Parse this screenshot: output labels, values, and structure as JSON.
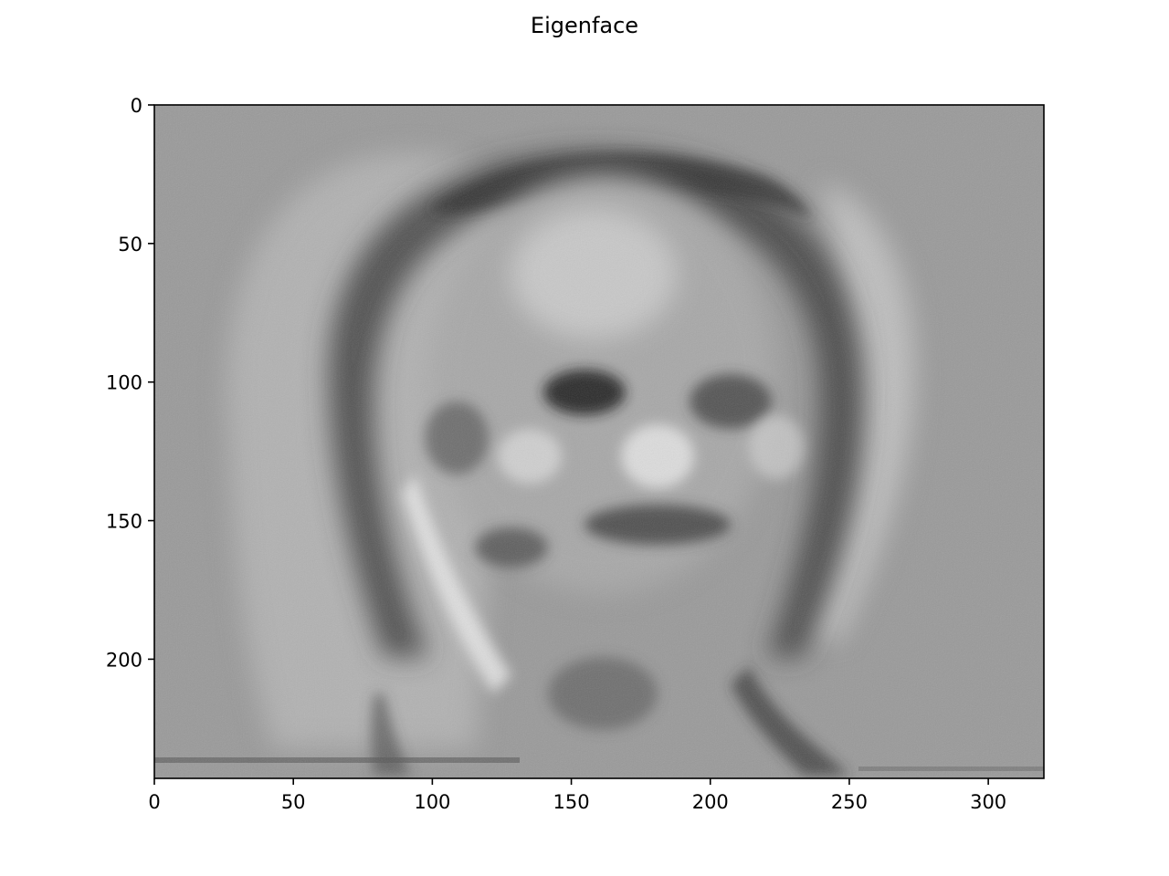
{
  "chart_data": {
    "type": "heatmap",
    "title": "Eigenface",
    "xlabel": "",
    "ylabel": "",
    "colormap": "gray",
    "image_width": 320,
    "image_height": 243,
    "xlim": [
      0,
      320
    ],
    "ylim": [
      243,
      0
    ],
    "x_ticks": [
      0,
      50,
      100,
      150,
      200,
      250,
      300
    ],
    "y_ticks": [
      0,
      50,
      100,
      150,
      200
    ],
    "x_tick_labels": [
      "0",
      "50",
      "100",
      "150",
      "200",
      "250",
      "300"
    ],
    "y_tick_labels": [
      "0",
      "50",
      "100",
      "150",
      "200"
    ],
    "grid": false,
    "legend": "none"
  }
}
